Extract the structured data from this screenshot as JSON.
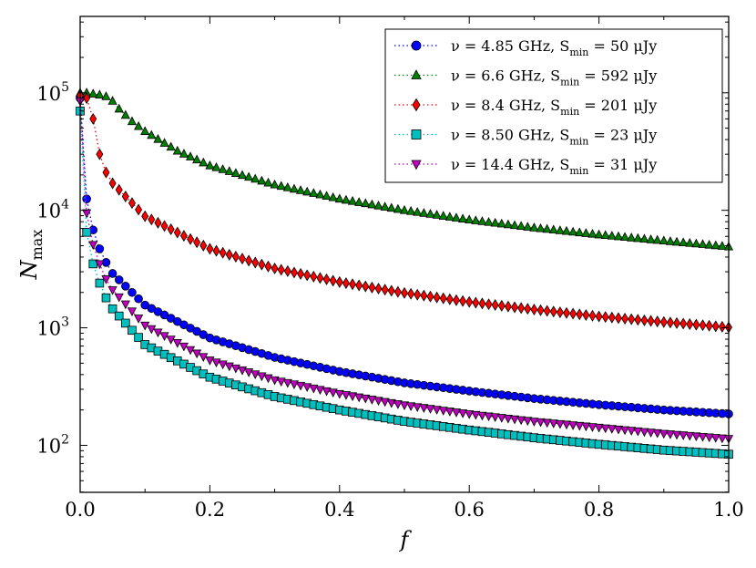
{
  "chart_data": {
    "type": "scatter",
    "title": "",
    "xlabel": "f",
    "ylabel_main": "N",
    "ylabel_sub": "max",
    "xlim": [
      0.0,
      1.0
    ],
    "ylim_log10": [
      1.6,
      5.65
    ],
    "y_scale": "log",
    "legend_position": "top-right",
    "x_ticks": [
      {
        "value": 0.0,
        "label": "0.0"
      },
      {
        "value": 0.2,
        "label": "0.2"
      },
      {
        "value": 0.4,
        "label": "0.4"
      },
      {
        "value": 0.6,
        "label": "0.6"
      },
      {
        "value": 0.8,
        "label": "0.8"
      },
      {
        "value": 1.0,
        "label": "1.0"
      }
    ],
    "y_ticks": [
      {
        "exp": 2,
        "base": "10",
        "sup": "2"
      },
      {
        "exp": 3,
        "base": "10",
        "sup": "3"
      },
      {
        "exp": 4,
        "base": "10",
        "sup": "4"
      },
      {
        "exp": 5,
        "base": "10",
        "sup": "5"
      }
    ],
    "series": [
      {
        "name": "nu-4.85",
        "legend_label": "ν = 4.85 GHz, S",
        "legend_sub": "min",
        "legend_tail": " = 50 μJy",
        "marker": "circle",
        "color": "#0000ff",
        "points": [
          [
            0.0,
            90000
          ],
          [
            0.01,
            12500
          ],
          [
            0.02,
            6800
          ],
          [
            0.03,
            4700
          ],
          [
            0.04,
            3600
          ],
          [
            0.05,
            2900
          ],
          [
            0.1,
            1560
          ],
          [
            0.2,
            820
          ],
          [
            0.3,
            560
          ],
          [
            0.4,
            425
          ],
          [
            0.5,
            340
          ],
          [
            0.6,
            290
          ],
          [
            0.7,
            250
          ],
          [
            0.8,
            222
          ],
          [
            0.9,
            200
          ],
          [
            1.0,
            185
          ]
        ]
      },
      {
        "name": "nu-6.6",
        "legend_label": "ν = 6.6 GHz, S",
        "legend_sub": "min",
        "legend_tail": " = 592 μJy",
        "marker": "triangle-up",
        "color": "#008000",
        "points": [
          [
            0.0,
            100000
          ],
          [
            0.01,
            100000
          ],
          [
            0.02,
            98000
          ],
          [
            0.03,
            96000
          ],
          [
            0.04,
            93000
          ],
          [
            0.05,
            85000
          ],
          [
            0.06,
            73000
          ],
          [
            0.08,
            57000
          ],
          [
            0.1,
            47000
          ],
          [
            0.15,
            32000
          ],
          [
            0.2,
            24000
          ],
          [
            0.3,
            16500
          ],
          [
            0.4,
            12500
          ],
          [
            0.5,
            10000
          ],
          [
            0.6,
            8300
          ],
          [
            0.7,
            7100
          ],
          [
            0.8,
            6200
          ],
          [
            0.9,
            5500
          ],
          [
            1.0,
            4900
          ]
        ]
      },
      {
        "name": "nu-8.4",
        "legend_label": "ν = 8.4 GHz, S",
        "legend_sub": "min",
        "legend_tail": " = 201 μJy",
        "marker": "diamond",
        "color": "#ff0000",
        "points": [
          [
            0.0,
            95000
          ],
          [
            0.01,
            90000
          ],
          [
            0.02,
            60000
          ],
          [
            0.03,
            30000
          ],
          [
            0.04,
            21000
          ],
          [
            0.05,
            17000
          ],
          [
            0.1,
            8900
          ],
          [
            0.2,
            4700
          ],
          [
            0.3,
            3200
          ],
          [
            0.4,
            2450
          ],
          [
            0.5,
            1980
          ],
          [
            0.6,
            1660
          ],
          [
            0.7,
            1430
          ],
          [
            0.8,
            1250
          ],
          [
            0.9,
            1120
          ],
          [
            1.0,
            1010
          ]
        ]
      },
      {
        "name": "nu-8.50",
        "legend_label": "ν = 8.50 GHz, S",
        "legend_sub": "min",
        "legend_tail": " = 23 μJy",
        "marker": "square",
        "color": "#00bfbf",
        "points": [
          [
            0.0,
            70000
          ],
          [
            0.01,
            6500
          ],
          [
            0.02,
            3500
          ],
          [
            0.03,
            2400
          ],
          [
            0.04,
            1800
          ],
          [
            0.05,
            1450
          ],
          [
            0.1,
            720
          ],
          [
            0.2,
            380
          ],
          [
            0.3,
            260
          ],
          [
            0.4,
            200
          ],
          [
            0.5,
            160
          ],
          [
            0.6,
            135
          ],
          [
            0.7,
            116
          ],
          [
            0.8,
            102
          ],
          [
            0.9,
            91
          ],
          [
            1.0,
            84
          ]
        ]
      },
      {
        "name": "nu-14.4",
        "legend_label": "ν = 14.4 GHz, S",
        "legend_sub": "min",
        "legend_tail": " = 31 μJy",
        "marker": "triangle-down",
        "color": "#bf00bf",
        "points": [
          [
            0.0,
            85000
          ],
          [
            0.01,
            9500
          ],
          [
            0.02,
            5100
          ],
          [
            0.03,
            3500
          ],
          [
            0.04,
            2600
          ],
          [
            0.05,
            2100
          ],
          [
            0.1,
            1050
          ],
          [
            0.2,
            530
          ],
          [
            0.3,
            360
          ],
          [
            0.4,
            275
          ],
          [
            0.5,
            220
          ],
          [
            0.6,
            185
          ],
          [
            0.7,
            160
          ],
          [
            0.8,
            142
          ],
          [
            0.9,
            126
          ],
          [
            1.0,
            114
          ]
        ]
      }
    ]
  }
}
